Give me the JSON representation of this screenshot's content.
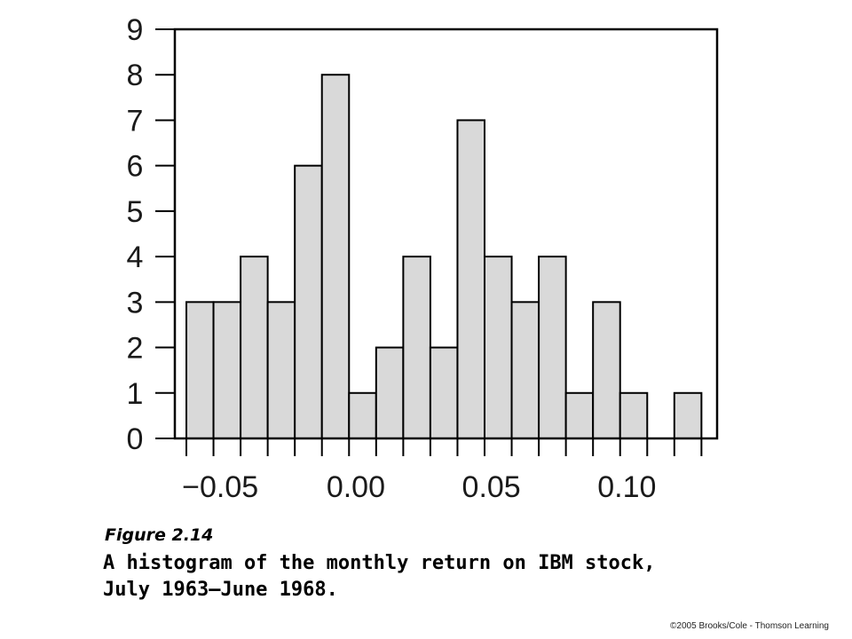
{
  "chart_data": {
    "type": "bar",
    "title": "",
    "xlabel": "",
    "ylabel": "",
    "ylim": [
      0,
      9
    ],
    "xlim": [
      -0.0625,
      0.13
    ],
    "bin_width": 0.01,
    "bins": [
      {
        "start": -0.0625,
        "end": -0.0525,
        "count": 3
      },
      {
        "start": -0.0525,
        "end": -0.0425,
        "count": 3
      },
      {
        "start": -0.0425,
        "end": -0.0325,
        "count": 4
      },
      {
        "start": -0.0325,
        "end": -0.0225,
        "count": 3
      },
      {
        "start": -0.0225,
        "end": -0.0125,
        "count": 6
      },
      {
        "start": -0.0125,
        "end": -0.0025,
        "count": 8
      },
      {
        "start": -0.0025,
        "end": 0.0075,
        "count": 1
      },
      {
        "start": 0.0075,
        "end": 0.0175,
        "count": 2
      },
      {
        "start": 0.0175,
        "end": 0.0275,
        "count": 4
      },
      {
        "start": 0.0275,
        "end": 0.0375,
        "count": 2
      },
      {
        "start": 0.0375,
        "end": 0.0475,
        "count": 7
      },
      {
        "start": 0.0475,
        "end": 0.0575,
        "count": 4
      },
      {
        "start": 0.0575,
        "end": 0.0675,
        "count": 3
      },
      {
        "start": 0.0675,
        "end": 0.0775,
        "count": 4
      },
      {
        "start": 0.0775,
        "end": 0.0875,
        "count": 1
      },
      {
        "start": 0.0875,
        "end": 0.0975,
        "count": 3
      },
      {
        "start": 0.0975,
        "end": 0.1075,
        "count": 1
      },
      {
        "start": 0.1075,
        "end": 0.1175,
        "count": 0
      },
      {
        "start": 0.1175,
        "end": 0.1275,
        "count": 1
      }
    ],
    "y_ticks": [
      0,
      1,
      2,
      3,
      4,
      5,
      6,
      7,
      8,
      9
    ],
    "x_tick_labels": [
      {
        "value": -0.05,
        "label": "−0.05"
      },
      {
        "value": 0.0,
        "label": "0.00"
      },
      {
        "value": 0.05,
        "label": "0.05"
      },
      {
        "value": 0.1,
        "label": "0.10"
      }
    ],
    "grid": false,
    "bar_color": "#d9d9d9",
    "edge_color": "#000000"
  },
  "caption": {
    "figure_number": "Figure 2.14",
    "line1": "A histogram of the monthly return on IBM stock,",
    "line2": "July 1963–June 1968."
  },
  "copyright": "©2005 Brooks/Cole - Thomson Learning"
}
